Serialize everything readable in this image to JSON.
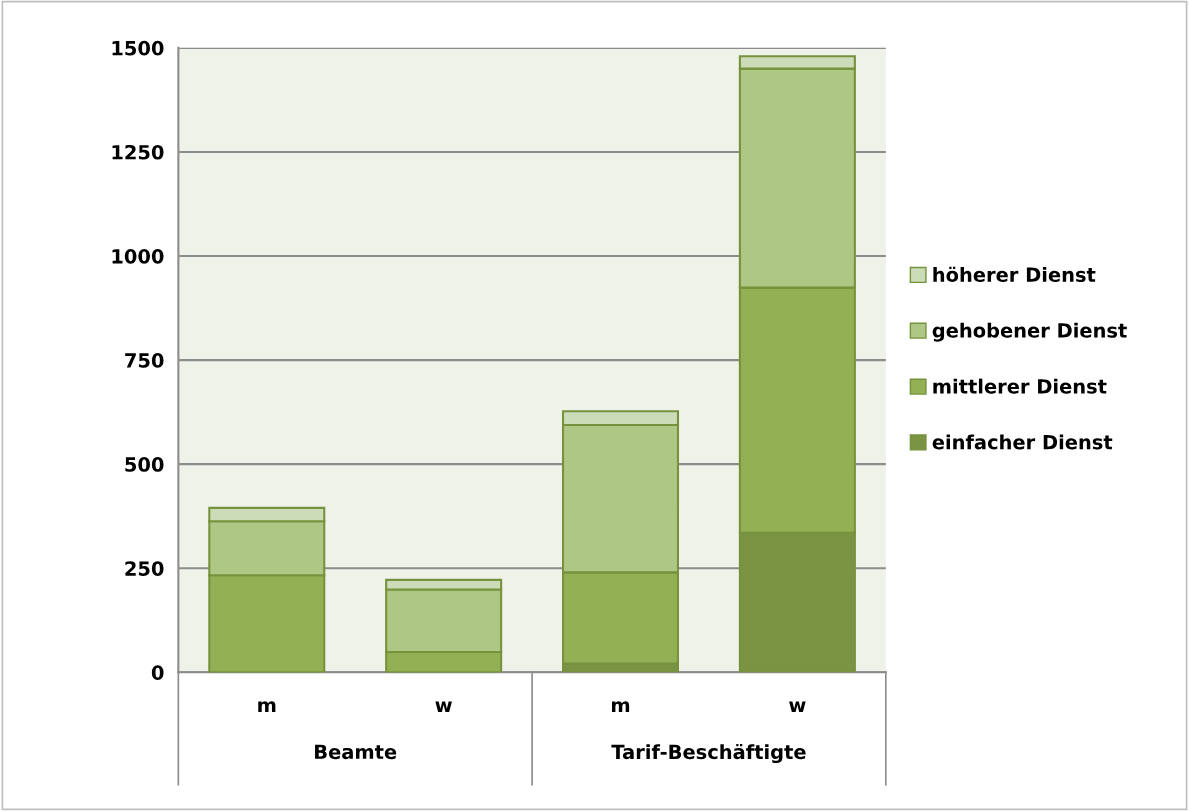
{
  "chart_data": {
    "type": "bar",
    "stacked": true,
    "categories": [
      "m",
      "w",
      "m",
      "w"
    ],
    "series": [
      {
        "name": "einfacher Dienst",
        "color": "#7a9443",
        "values": [
          0,
          0,
          21,
          335
        ]
      },
      {
        "name": "mittlerer Dienst",
        "color": "#93b054",
        "values": [
          233,
          49,
          219,
          589
        ]
      },
      {
        "name": "gehobener Dienst",
        "color": "#aec785",
        "values": [
          130,
          150,
          354,
          526
        ]
      },
      {
        "name": "höherer Dienst",
        "color": "#ccdcb8",
        "values": [
          32,
          23,
          33,
          30
        ]
      }
    ],
    "annotations": [
      "Beamte",
      "Tarif-Beschäftigte"
    ],
    "ylim": [
      0,
      1500
    ],
    "yticks": [
      0,
      250,
      500,
      750,
      1000,
      1250,
      1500
    ],
    "grid": "y",
    "legend": "right"
  }
}
